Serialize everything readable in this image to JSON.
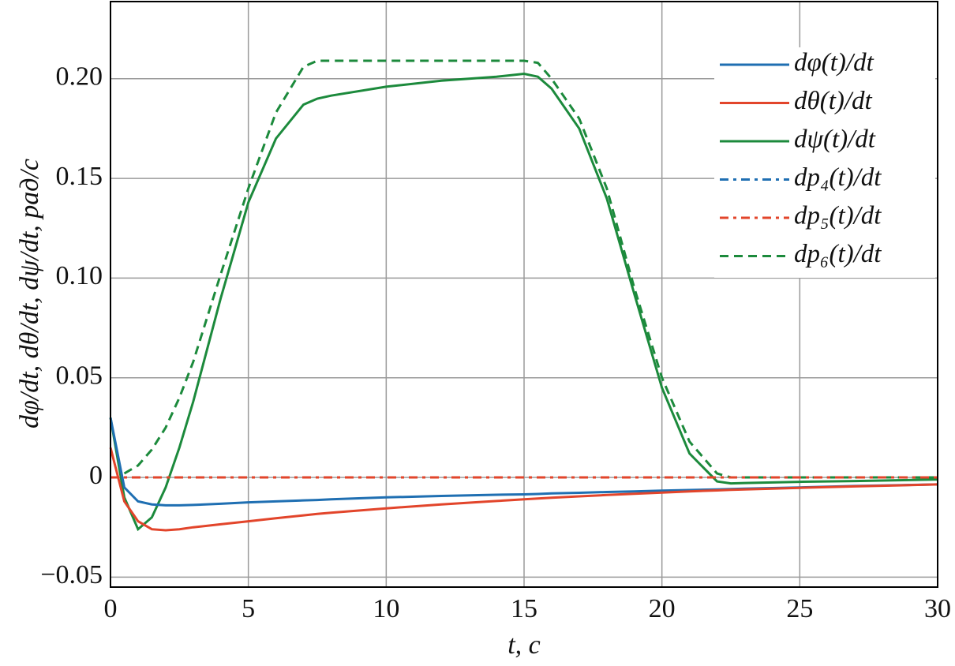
{
  "chart_data": {
    "type": "line",
    "xlabel": "t, с",
    "ylabel": "dφ/dt, dθ/dt, dψ/dt, рад/с",
    "x": [
      0,
      0.5,
      1,
      1.5,
      2,
      2.5,
      3,
      4,
      5,
      6,
      7,
      7.5,
      8,
      10,
      12,
      14,
      15,
      15.5,
      16,
      17,
      18,
      19,
      20,
      21,
      22,
      22.5,
      23,
      25,
      27,
      30
    ],
    "series": [
      {
        "name": "dφ(t)/dt",
        "color": "#1f6fb2",
        "style": "solid",
        "values": [
          0.03,
          -0.005,
          -0.012,
          -0.0135,
          -0.014,
          -0.014,
          -0.0138,
          -0.0132,
          -0.0125,
          -0.012,
          -0.0115,
          -0.0113,
          -0.011,
          -0.01,
          -0.0093,
          -0.0087,
          -0.0085,
          -0.0083,
          -0.008,
          -0.0077,
          -0.0073,
          -0.007,
          -0.0066,
          -0.0063,
          -0.006,
          -0.0058,
          -0.0056,
          -0.005,
          -0.0043,
          -0.0035
        ]
      },
      {
        "name": "dθ(t)/dt",
        "color": "#e2452b",
        "style": "solid",
        "values": [
          0.015,
          -0.012,
          -0.022,
          -0.026,
          -0.0265,
          -0.026,
          -0.025,
          -0.0235,
          -0.022,
          -0.0205,
          -0.019,
          -0.0183,
          -0.0177,
          -0.0155,
          -0.0135,
          -0.0118,
          -0.011,
          -0.0106,
          -0.0102,
          -0.0095,
          -0.0088,
          -0.0082,
          -0.0076,
          -0.007,
          -0.0065,
          -0.0062,
          -0.006,
          -0.0052,
          -0.0045,
          -0.0035
        ]
      },
      {
        "name": "dψ(t)/dt",
        "color": "#1c8a3c",
        "style": "solid",
        "values": [
          0.03,
          -0.01,
          -0.026,
          -0.02,
          -0.005,
          0.015,
          0.038,
          0.09,
          0.138,
          0.17,
          0.187,
          0.19,
          0.1915,
          0.196,
          0.199,
          0.201,
          0.2025,
          0.201,
          0.195,
          0.175,
          0.14,
          0.092,
          0.045,
          0.012,
          -0.002,
          -0.003,
          -0.0028,
          -0.0022,
          -0.0018,
          -0.001
        ]
      },
      {
        "name": "dp₄(t)/dt",
        "color": "#1f6fb2",
        "style": "dashdot",
        "values": [
          0,
          0,
          0,
          0,
          0,
          0,
          0,
          0,
          0,
          0,
          0,
          0,
          0,
          0,
          0,
          0,
          0,
          0,
          0,
          0,
          0,
          0,
          0,
          0,
          0,
          0,
          0,
          0,
          0,
          0
        ]
      },
      {
        "name": "dp₅(t)/dt",
        "color": "#e2452b",
        "style": "dashdot",
        "values": [
          0,
          0,
          0,
          0,
          0,
          0,
          0,
          0,
          0,
          0,
          0,
          0,
          0,
          0,
          0,
          0,
          0,
          0,
          0,
          0,
          0,
          0,
          0,
          0,
          0,
          0,
          0,
          0,
          0,
          0
        ]
      },
      {
        "name": "dp₆(t)/dt",
        "color": "#1c8a3c",
        "style": "dashed",
        "values": [
          null,
          0.002,
          0.006,
          0.014,
          0.025,
          0.04,
          0.058,
          0.102,
          0.145,
          0.183,
          0.206,
          0.209,
          0.209,
          0.209,
          0.209,
          0.209,
          0.209,
          0.208,
          0.2,
          0.18,
          0.145,
          0.095,
          0.05,
          0.018,
          0.002,
          0,
          0,
          0,
          0,
          0
        ]
      }
    ],
    "xlim": [
      0,
      30
    ],
    "xticks": [
      0,
      5,
      10,
      15,
      20,
      25,
      30
    ],
    "ylim": [
      -0.055,
      0.2387
    ],
    "yticks": [
      {
        "value": -0.05,
        "label": "−0.05"
      },
      0,
      {
        "value": 0.05,
        "label": "0.05"
      },
      {
        "value": 0.1,
        "label": "0.10"
      },
      {
        "value": 0.15,
        "label": "0.15"
      },
      {
        "value": 0.2,
        "label": "0.20"
      }
    ],
    "grid": true,
    "legend": "upper right"
  }
}
